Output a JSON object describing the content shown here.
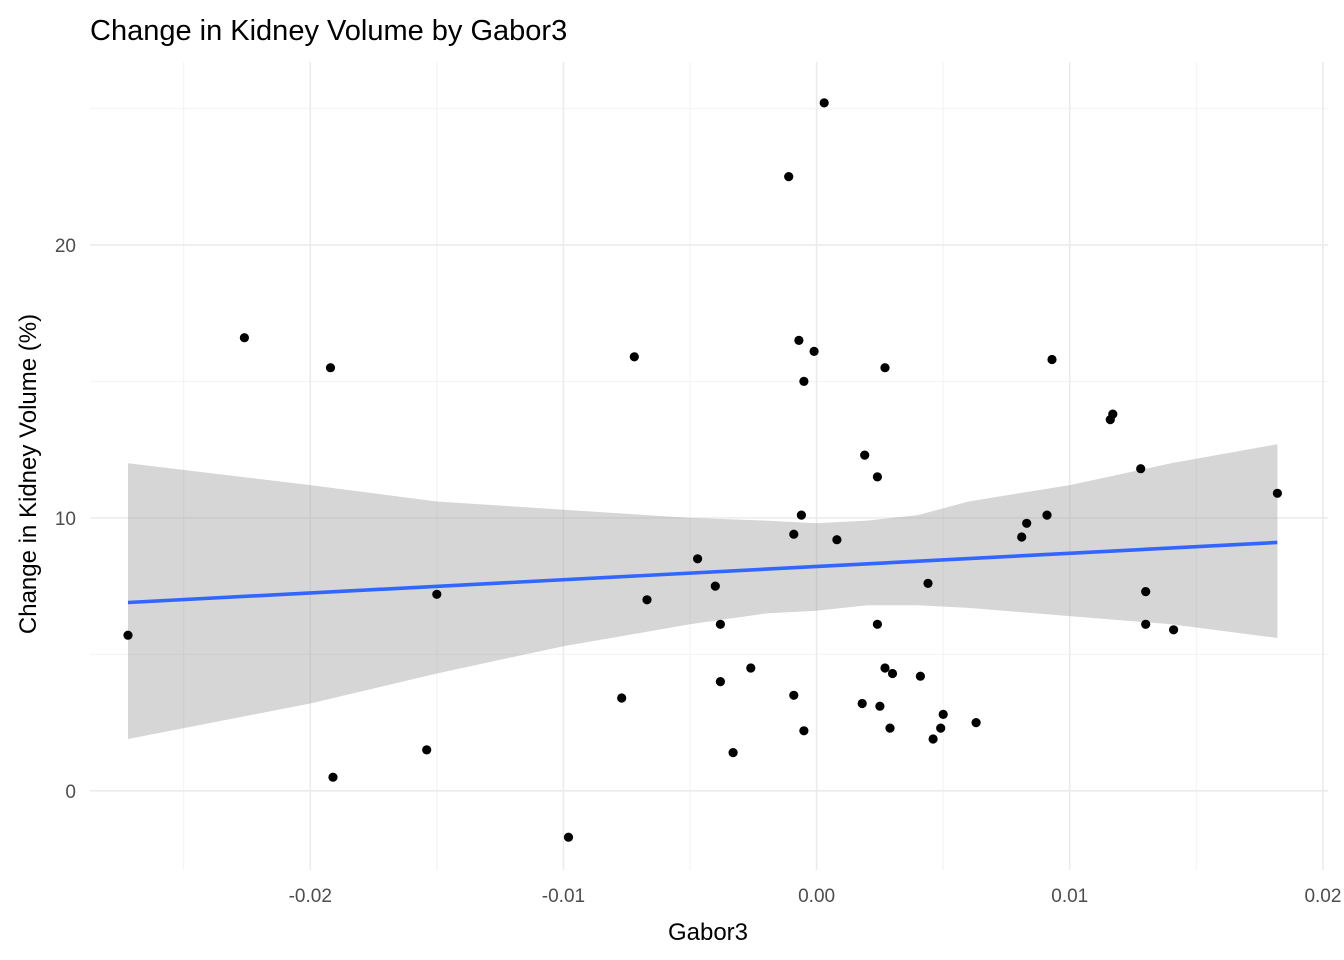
{
  "chart_data": {
    "type": "scatter",
    "title": "Change in Kidney Volume by Gabor3",
    "xlabel": "Gabor3",
    "ylabel": "Change in Kidney Volume (%)",
    "xlim": [
      -0.0287,
      0.0202
    ],
    "ylim": [
      -2.9,
      26.7
    ],
    "x_ticks": [
      -0.02,
      -0.01,
      0.0,
      0.01,
      0.02
    ],
    "x_tick_labels": [
      "-0.02",
      "-0.01",
      "0.00",
      "0.01",
      "0.02"
    ],
    "y_ticks": [
      0,
      10,
      20
    ],
    "y_tick_labels": [
      "0",
      "10",
      "20"
    ],
    "grid": true,
    "points": [
      {
        "x": -0.0272,
        "y": 5.7
      },
      {
        "x": -0.0226,
        "y": 16.6
      },
      {
        "x": -0.0192,
        "y": 15.5
      },
      {
        "x": -0.0191,
        "y": 0.5
      },
      {
        "x": -0.0154,
        "y": 1.5
      },
      {
        "x": -0.015,
        "y": 7.2
      },
      {
        "x": -0.0098,
        "y": -1.7
      },
      {
        "x": -0.0077,
        "y": 3.4
      },
      {
        "x": -0.0072,
        "y": 15.9
      },
      {
        "x": -0.0067,
        "y": 7.0
      },
      {
        "x": -0.0047,
        "y": 8.5
      },
      {
        "x": -0.004,
        "y": 7.5
      },
      {
        "x": -0.0038,
        "y": 6.1
      },
      {
        "x": -0.0038,
        "y": 4.0
      },
      {
        "x": -0.0033,
        "y": 1.4
      },
      {
        "x": -0.0026,
        "y": 4.5
      },
      {
        "x": -0.0011,
        "y": 22.5
      },
      {
        "x": -0.0009,
        "y": 3.5
      },
      {
        "x": -0.0009,
        "y": 9.4
      },
      {
        "x": -0.0007,
        "y": 16.5
      },
      {
        "x": -0.0006,
        "y": 10.1
      },
      {
        "x": -0.0005,
        "y": 15.0
      },
      {
        "x": -0.0005,
        "y": 2.2
      },
      {
        "x": -0.0001,
        "y": 16.1
      },
      {
        "x": 0.0003,
        "y": 25.2
      },
      {
        "x": 0.0008,
        "y": 9.2
      },
      {
        "x": 0.0018,
        "y": 3.2
      },
      {
        "x": 0.0019,
        "y": 12.3
      },
      {
        "x": 0.0024,
        "y": 11.5
      },
      {
        "x": 0.0024,
        "y": 6.1
      },
      {
        "x": 0.0025,
        "y": 3.1
      },
      {
        "x": 0.0027,
        "y": 4.5
      },
      {
        "x": 0.0027,
        "y": 15.5
      },
      {
        "x": 0.0029,
        "y": 2.3
      },
      {
        "x": 0.003,
        "y": 4.3
      },
      {
        "x": 0.0041,
        "y": 4.2
      },
      {
        "x": 0.0044,
        "y": 7.6
      },
      {
        "x": 0.0046,
        "y": 1.9
      },
      {
        "x": 0.0049,
        "y": 2.3
      },
      {
        "x": 0.005,
        "y": 2.8
      },
      {
        "x": 0.0063,
        "y": 2.5
      },
      {
        "x": 0.0081,
        "y": 9.3
      },
      {
        "x": 0.0083,
        "y": 9.8
      },
      {
        "x": 0.0091,
        "y": 10.1
      },
      {
        "x": 0.0093,
        "y": 15.8
      },
      {
        "x": 0.0116,
        "y": 13.6
      },
      {
        "x": 0.0117,
        "y": 13.8
      },
      {
        "x": 0.0128,
        "y": 11.8
      },
      {
        "x": 0.013,
        "y": 6.1
      },
      {
        "x": 0.013,
        "y": 7.3
      },
      {
        "x": 0.0141,
        "y": 5.9
      },
      {
        "x": 0.0182,
        "y": 10.9
      }
    ],
    "trend": {
      "x": [
        -0.0272,
        0.0182
      ],
      "y": [
        6.9,
        9.1
      ],
      "color": "#3366ff"
    },
    "confidence_band": {
      "x": [
        -0.0272,
        -0.02,
        -0.015,
        -0.01,
        -0.005,
        -0.002,
        0.0,
        0.002,
        0.004,
        0.006,
        0.01,
        0.014,
        0.0182
      ],
      "lower": [
        1.9,
        3.2,
        4.3,
        5.3,
        6.1,
        6.5,
        6.6,
        6.8,
        6.8,
        6.7,
        6.4,
        6.1,
        5.6
      ],
      "upper": [
        12.0,
        11.2,
        10.6,
        10.3,
        10.0,
        9.9,
        9.8,
        9.9,
        10.1,
        10.6,
        11.2,
        12.0,
        12.7
      ],
      "color": "#999999"
    }
  }
}
